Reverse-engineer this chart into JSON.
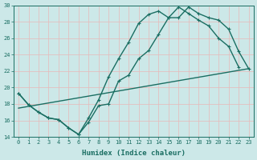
{
  "title": "",
  "xlabel": "Humidex (Indice chaleur)",
  "xlim": [
    -0.5,
    23.5
  ],
  "ylim": [
    14,
    30
  ],
  "xticks": [
    0,
    1,
    2,
    3,
    4,
    5,
    6,
    7,
    8,
    9,
    10,
    11,
    12,
    13,
    14,
    15,
    16,
    17,
    18,
    19,
    20,
    21,
    22,
    23
  ],
  "yticks": [
    14,
    16,
    18,
    20,
    22,
    24,
    26,
    28,
    30
  ],
  "background_color": "#cce8e8",
  "grid_color": "#e8b8b8",
  "line_color": "#1a6e62",
  "line1_x": [
    0,
    1,
    2,
    3,
    4,
    5,
    6,
    7,
    8,
    9,
    10,
    11,
    12,
    13,
    14,
    15,
    16,
    17,
    18,
    19,
    20,
    21,
    22,
    23
  ],
  "line1_y": [
    19.3,
    17.9,
    17.0,
    16.3,
    16.1,
    15.1,
    14.3,
    16.3,
    18.5,
    21.3,
    23.5,
    25.5,
    27.8,
    28.9,
    29.3,
    28.5,
    28.5,
    29.8,
    29.0,
    28.5,
    28.2,
    27.1,
    24.4,
    22.3
  ],
  "line2_x": [
    0,
    1,
    2,
    3,
    4,
    5,
    6,
    7,
    8,
    9,
    10,
    11,
    12,
    13,
    14,
    15,
    16,
    17,
    18,
    19,
    20,
    21,
    22
  ],
  "line2_y": [
    19.3,
    17.9,
    17.0,
    16.3,
    16.1,
    15.1,
    14.3,
    15.8,
    17.8,
    18.0,
    20.8,
    21.5,
    23.5,
    24.5,
    26.5,
    28.5,
    29.8,
    29.0,
    28.2,
    27.5,
    26.0,
    25.0,
    22.5
  ],
  "line3_x": [
    0,
    23
  ],
  "line3_y": [
    17.5,
    22.3
  ],
  "marker": "+",
  "markersize": 3.5,
  "linewidth": 1.0
}
